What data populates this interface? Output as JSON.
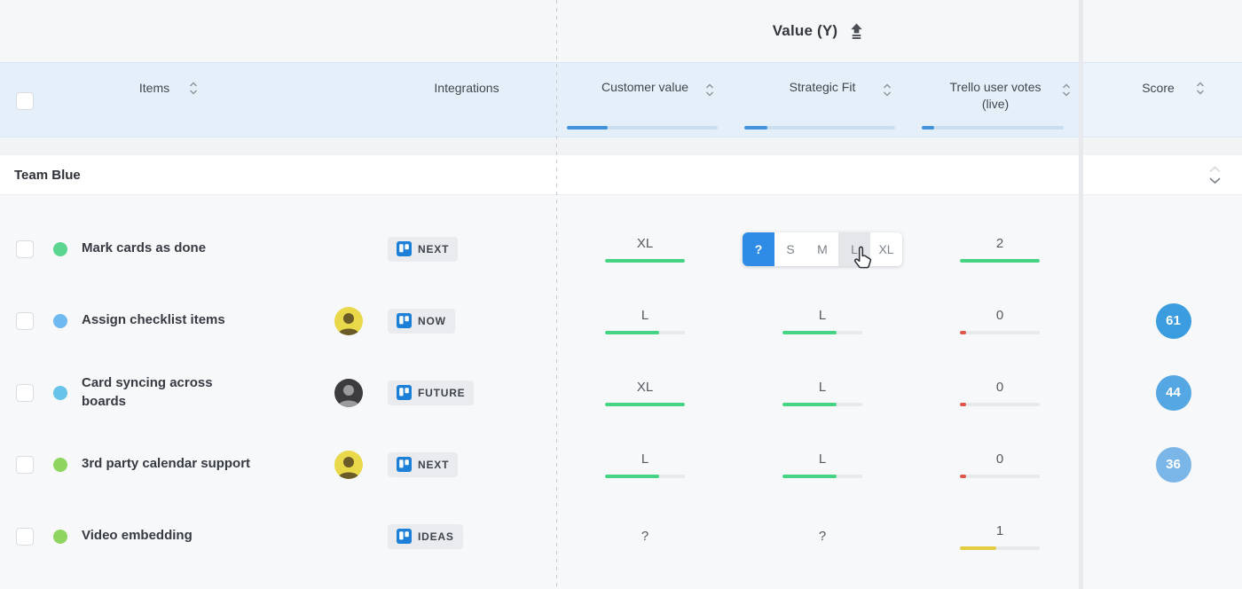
{
  "top": {
    "axis_label": "Value (Y)"
  },
  "columns": {
    "items": {
      "label": "Items",
      "sortable": true
    },
    "integrations": {
      "label": "Integrations",
      "sortable": false
    },
    "customer": {
      "label": "Customer value",
      "sortable": true,
      "progress_pct": 27
    },
    "strategic": {
      "label": "Strategic Fit",
      "sortable": true,
      "progress_pct": 15
    },
    "votes": {
      "label": "Trello user votes (live)",
      "sortable": true,
      "progress_pct": 9
    },
    "score": {
      "label": "Score",
      "sortable": true
    }
  },
  "group": {
    "name": "Team Blue"
  },
  "rows": [
    {
      "title": "Mark cards as done",
      "dot_color": "#5bd690",
      "badge": "NEXT",
      "customer": {
        "value": "XL",
        "fill": 100,
        "color": "#45d483"
      },
      "strategic": {
        "type": "picker",
        "options": [
          "?",
          "S",
          "M",
          "L",
          "XL"
        ],
        "selected": "?",
        "hovered": "L"
      },
      "votes": {
        "value": "2",
        "fill": 100,
        "color": "#45d483"
      }
    },
    {
      "title": "Assign checklist items",
      "dot_color": "#6fb9f2",
      "avatar": "person-yellow",
      "badge": "NOW",
      "customer": {
        "value": "L",
        "fill": 68,
        "color": "#45d483"
      },
      "strategic": {
        "value": "L",
        "fill": 68,
        "color": "#45d483"
      },
      "votes": {
        "value": "0",
        "fill": 8,
        "color": "#e0574a"
      },
      "score": {
        "value": "61",
        "color": "#3b9ce0"
      }
    },
    {
      "title": "Card syncing across boards",
      "dot_color": "#67c3e9",
      "avatar": "person-dark",
      "badge": "FUTURE",
      "customer": {
        "value": "XL",
        "fill": 100,
        "color": "#45d483"
      },
      "strategic": {
        "value": "L",
        "fill": 68,
        "color": "#45d483"
      },
      "votes": {
        "value": "0",
        "fill": 8,
        "color": "#e0574a"
      },
      "score": {
        "value": "44",
        "color": "#55a7e3"
      }
    },
    {
      "title": "3rd party calendar support",
      "dot_color": "#8ed45f",
      "avatar": "person-yellow",
      "badge": "NEXT",
      "customer": {
        "value": "L",
        "fill": 68,
        "color": "#45d483"
      },
      "strategic": {
        "value": "L",
        "fill": 68,
        "color": "#45d483"
      },
      "votes": {
        "value": "0",
        "fill": 8,
        "color": "#e0574a"
      },
      "score": {
        "value": "36",
        "color": "#7ab6e8"
      }
    },
    {
      "title": "Video embedding",
      "dot_color": "#8ed45f",
      "badge": "IDEAS",
      "customer": {
        "value": "?"
      },
      "strategic": {
        "value": "?"
      },
      "votes": {
        "value": "1",
        "fill": 45,
        "color": "#e3cc3f"
      }
    }
  ],
  "ui": {
    "accent_blue": "#2f8ce6",
    "header_progress_fill": "#4293d9",
    "cursor": "hand-pointer",
    "avatar_yellow_bg": "#e8d84a",
    "avatar_dark_bg": "#3c3c3e"
  }
}
